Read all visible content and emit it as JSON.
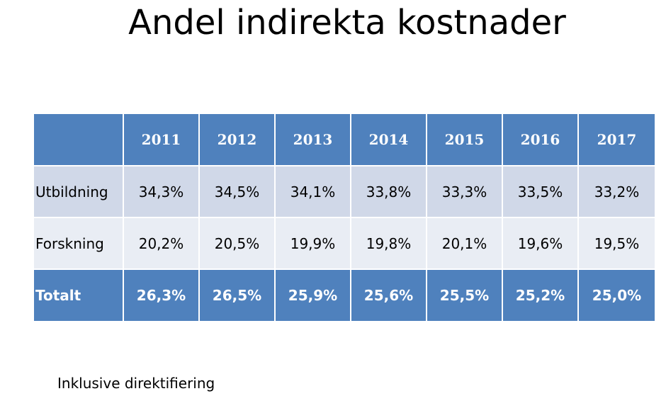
{
  "title": "Andel indirekta kostnader",
  "table": {
    "corner": "",
    "years": [
      "2011",
      "2012",
      "2013",
      "2014",
      "2015",
      "2016",
      "2017"
    ],
    "rows": [
      {
        "label": "Utbildning",
        "values": [
          "34,3%",
          "34,5%",
          "34,1%",
          "33,8%",
          "33,3%",
          "33,5%",
          "33,2%"
        ]
      },
      {
        "label": "Forskning",
        "values": [
          "20,2%",
          "20,5%",
          "19,9%",
          "19,8%",
          "20,1%",
          "19,6%",
          "19,5%"
        ]
      },
      {
        "label": "Totalt",
        "values": [
          "26,3%",
          "26,5%",
          "25,9%",
          "25,6%",
          "25,5%",
          "25,2%",
          "25,0%"
        ]
      }
    ]
  },
  "footnote": "Inklusive direktifiering",
  "colors": {
    "header_fill": "#4f81bd",
    "row_band_dark": "#d0d8e8",
    "row_band_light": "#e9edf4",
    "header_text": "#ffffff"
  }
}
